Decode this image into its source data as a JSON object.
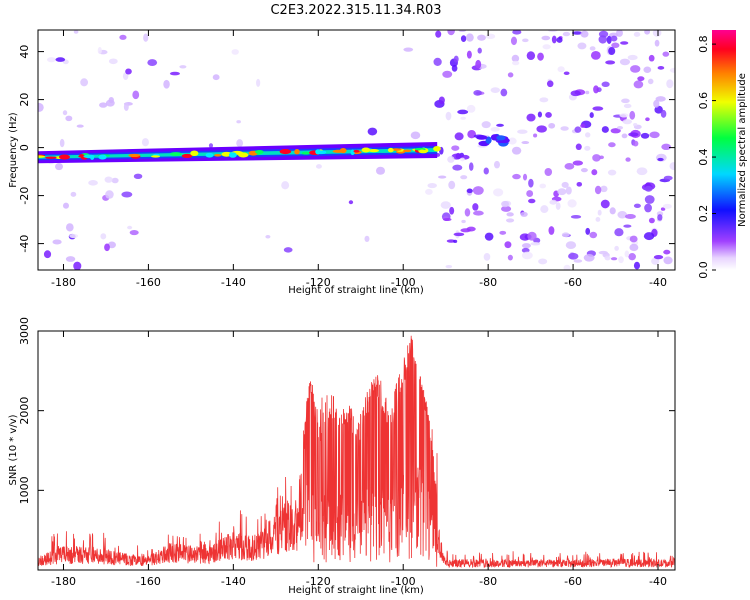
{
  "title": "C2E3.2022.315.11.34.R03",
  "colors": {
    "snr_line": "#ee3333",
    "scatter_dot": "#9a4dff",
    "track_core": "#00e0c0",
    "track_edge": "#6a00ff"
  },
  "chart_data": [
    {
      "type": "heatmap",
      "name": "spectrogram",
      "xlabel": "Height of straight line (km)",
      "ylabel": "Frequency (Hz)",
      "xlim": [
        -186,
        -36
      ],
      "ylim": [
        -51,
        49
      ],
      "xticks": [
        -180,
        -160,
        -140,
        -120,
        -100,
        -80,
        -60,
        -40
      ],
      "yticks": [
        -40,
        -20,
        0,
        20,
        40
      ],
      "colorbar": {
        "label": "Normalized spectral amplitude",
        "range": [
          0,
          0.85
        ],
        "ticks": [
          "0.0",
          "0.2",
          "0.4",
          "0.6",
          "0.8"
        ],
        "colormap": "gist_rainbow_r"
      },
      "track": {
        "x_range": [
          -186,
          -92
        ],
        "frequency_start": -4,
        "frequency_end": -1,
        "peak_amplitude": 0.85,
        "secondary_feature": {
          "x_range": [
            -86,
            -76
          ],
          "frequency": 3
        }
      },
      "noise_regions": [
        {
          "x_range": [
            -186,
            -160
          ],
          "density": "medium"
        },
        {
          "x_range": [
            -160,
            -92
          ],
          "density": "sparse"
        },
        {
          "x_range": [
            -92,
            -36
          ],
          "density": "dense"
        }
      ]
    },
    {
      "type": "line",
      "name": "snr",
      "xlabel": "Height of straight line (km)",
      "ylabel": "SNR (10 * v/v)",
      "xlim": [
        -186,
        -36
      ],
      "ylim": [
        0,
        3000
      ],
      "xticks": [
        -180,
        -160,
        -140,
        -120,
        -100,
        -80,
        -60,
        -40
      ],
      "yticks": [
        1000,
        2000,
        3000
      ],
      "series": [
        {
          "x": [
            -186,
            -180,
            -175,
            -170,
            -165,
            -160,
            -155,
            -150,
            -145,
            -140,
            -136,
            -132,
            -128,
            -125,
            -122,
            -120,
            -118,
            -115,
            -112,
            -110,
            -107,
            -105,
            -103,
            -100,
            -98,
            -96,
            -94,
            -92,
            -90,
            -85,
            -80,
            -70,
            -60,
            -50,
            -40,
            -36
          ],
          "y": [
            150,
            250,
            250,
            230,
            170,
            140,
            300,
            250,
            280,
            450,
            350,
            450,
            750,
            650,
            2300,
            1500,
            1900,
            1800,
            1700,
            1600,
            2200,
            1900,
            1700,
            2300,
            2700,
            2300,
            1800,
            600,
            100,
            120,
            110,
            110,
            110,
            120,
            110,
            110
          ],
          "envelope_max": [
            450,
            560,
            500,
            480,
            380,
            300,
            520,
            450,
            500,
            900,
            680,
            800,
            1200,
            1000,
            2480,
            2000,
            2400,
            2000,
            2080,
            1980,
            2500,
            2400,
            2100,
            2640,
            3000,
            2440,
            2000,
            1500,
            260,
            240,
            240,
            240,
            230,
            230,
            230,
            230
          ]
        }
      ]
    }
  ]
}
